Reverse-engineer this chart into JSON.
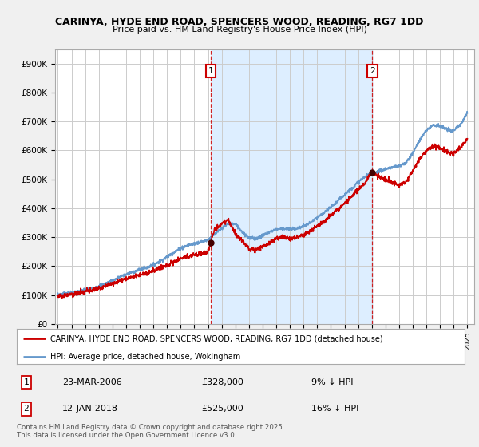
{
  "title": "CARINYA, HYDE END ROAD, SPENCERS WOOD, READING, RG7 1DD",
  "subtitle": "Price paid vs. HM Land Registry's House Price Index (HPI)",
  "ylabel_ticks": [
    "£0",
    "£100K",
    "£200K",
    "£300K",
    "£400K",
    "£500K",
    "£600K",
    "£700K",
    "£800K",
    "£900K"
  ],
  "ytick_values": [
    0,
    100000,
    200000,
    300000,
    400000,
    500000,
    600000,
    700000,
    800000,
    900000
  ],
  "ylim": [
    0,
    950000
  ],
  "xlim_start": 1994.8,
  "xlim_end": 2025.5,
  "purchase1": {
    "date_num": 2006.22,
    "price": 328000,
    "label": "1",
    "pct": "9% ↓ HPI",
    "date_str": "23-MAR-2006"
  },
  "purchase2": {
    "date_num": 2018.04,
    "price": 525000,
    "label": "2",
    "pct": "16% ↓ HPI",
    "date_str": "12-JAN-2018"
  },
  "legend_label_red": "CARINYA, HYDE END ROAD, SPENCERS WOOD, READING, RG7 1DD (detached house)",
  "legend_label_blue": "HPI: Average price, detached house, Wokingham",
  "footer": "Contains HM Land Registry data © Crown copyright and database right 2025.\nThis data is licensed under the Open Government Licence v3.0.",
  "red_color": "#cc0000",
  "blue_color": "#6699cc",
  "shade_color": "#ddeeff",
  "bg_color": "#f0f0f0",
  "plot_bg": "#ffffff",
  "grid_color": "#cccccc",
  "hpi_years": [
    1995.0,
    1995.5,
    1996.0,
    1996.5,
    1997.0,
    1997.5,
    1998.0,
    1998.5,
    1999.0,
    1999.5,
    2000.0,
    2000.5,
    2001.0,
    2001.5,
    2002.0,
    2002.5,
    2003.0,
    2003.5,
    2004.0,
    2004.5,
    2005.0,
    2005.5,
    2006.0,
    2006.5,
    2007.0,
    2007.5,
    2008.0,
    2008.5,
    2009.0,
    2009.5,
    2010.0,
    2010.5,
    2011.0,
    2011.5,
    2012.0,
    2012.5,
    2013.0,
    2013.5,
    2014.0,
    2014.5,
    2015.0,
    2015.5,
    2016.0,
    2016.5,
    2017.0,
    2017.5,
    2018.0,
    2018.5,
    2019.0,
    2019.5,
    2020.0,
    2020.5,
    2021.0,
    2021.5,
    2022.0,
    2022.5,
    2023.0,
    2023.5,
    2024.0,
    2024.5,
    2025.0
  ],
  "hpi_vals": [
    102000,
    105000,
    108000,
    112000,
    118000,
    124000,
    132000,
    140000,
    150000,
    162000,
    172000,
    180000,
    188000,
    195000,
    205000,
    218000,
    232000,
    248000,
    262000,
    272000,
    278000,
    284000,
    292000,
    310000,
    330000,
    348000,
    345000,
    320000,
    298000,
    295000,
    305000,
    318000,
    328000,
    330000,
    328000,
    330000,
    338000,
    350000,
    368000,
    385000,
    405000,
    425000,
    448000,
    468000,
    490000,
    510000,
    520000,
    528000,
    535000,
    542000,
    545000,
    558000,
    590000,
    635000,
    670000,
    690000,
    685000,
    672000,
    668000,
    690000,
    730000
  ],
  "red_vals": [
    98000,
    100000,
    103000,
    107000,
    113000,
    118000,
    125000,
    132000,
    140000,
    150000,
    158000,
    164000,
    170000,
    176000,
    184000,
    194000,
    204000,
    215000,
    226000,
    234000,
    239000,
    244000,
    250000,
    328000,
    345000,
    360000,
    310000,
    290000,
    260000,
    255000,
    268000,
    280000,
    295000,
    300000,
    295000,
    298000,
    308000,
    320000,
    338000,
    355000,
    375000,
    395000,
    415000,
    440000,
    465000,
    488000,
    525000,
    510000,
    500000,
    490000,
    480000,
    490000,
    530000,
    570000,
    600000,
    615000,
    610000,
    595000,
    590000,
    610000,
    640000
  ]
}
